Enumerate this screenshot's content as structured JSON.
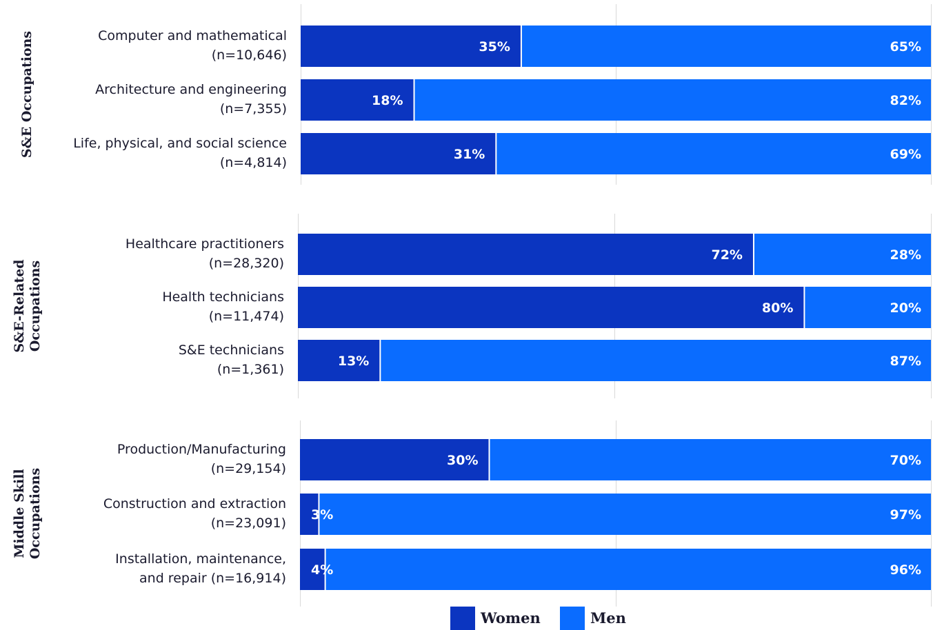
{
  "chart_data": {
    "type": "bar",
    "orientation": "horizontal",
    "stacked": true,
    "percent_stacked": true,
    "xlim": [
      0,
      100
    ],
    "grid": true,
    "legend_position": "bottom-center",
    "colors": {
      "women": "#0b35c0",
      "men": "#0a6cff"
    },
    "series": [
      {
        "name": "Women",
        "key": "women"
      },
      {
        "name": "Men",
        "key": "men"
      }
    ],
    "groups": [
      {
        "name": "S&E Occupations",
        "name_lines": [
          "S&E Occupations"
        ],
        "categories": [
          {
            "label_lines": [
              "Computer and mathematical",
              "(n=10,646)"
            ],
            "women": 35,
            "men": 65
          },
          {
            "label_lines": [
              "Architecture and engineering",
              "(n=7,355)"
            ],
            "women": 18,
            "men": 82
          },
          {
            "label_lines": [
              "Life, physical, and social science",
              "(n=4,814)"
            ],
            "women": 31,
            "men": 69
          }
        ]
      },
      {
        "name": "S&E-Related Occupations",
        "name_lines": [
          "S&E-Related",
          "Occupations"
        ],
        "categories": [
          {
            "label_lines": [
              "Healthcare practitioners",
              "(n=28,320)"
            ],
            "women": 72,
            "men": 28
          },
          {
            "label_lines": [
              "Health technicians",
              "(n=11,474)"
            ],
            "women": 80,
            "men": 20
          },
          {
            "label_lines": [
              "S&E technicians",
              "(n=1,361)"
            ],
            "women": 13,
            "men": 87
          }
        ]
      },
      {
        "name": "Middle Skill Occupations",
        "name_lines": [
          "Middle Skill",
          "Occupations"
        ],
        "categories": [
          {
            "label_lines": [
              "Production/Manufacturing",
              "(n=29,154)"
            ],
            "women": 30,
            "men": 70
          },
          {
            "label_lines": [
              "Construction and extraction",
              "(n=23,091)"
            ],
            "women": 3,
            "men": 97
          },
          {
            "label_lines": [
              "Installation, maintenance,",
              "and repair (n=16,914)"
            ],
            "women": 4,
            "men": 96
          }
        ]
      }
    ]
  }
}
